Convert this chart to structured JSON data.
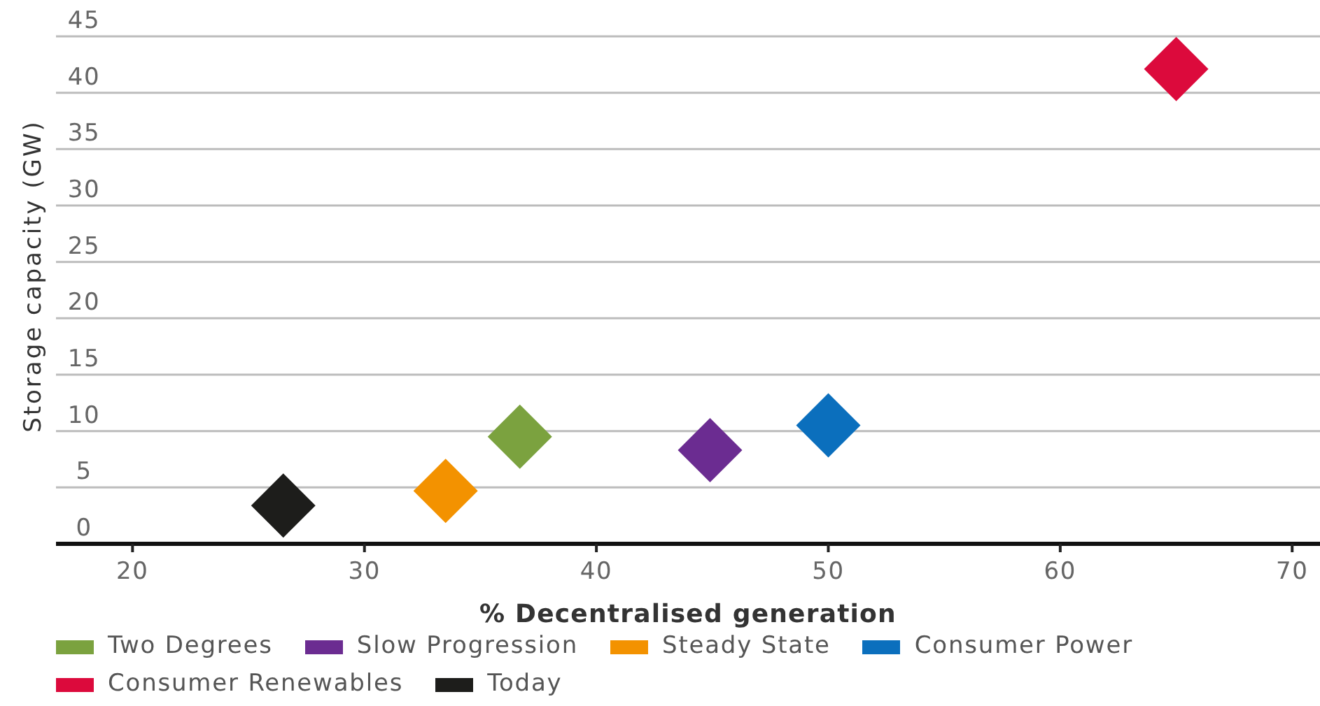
{
  "chart_data": {
    "type": "scatter",
    "xlabel": "% Decentralised generation",
    "ylabel": "Storage capacity (GW)",
    "xlim": [
      16.7,
      71.2
    ],
    "xticks": [
      20,
      30,
      40,
      50,
      60,
      70
    ],
    "ylim": [
      0,
      45
    ],
    "yticks": [
      0,
      5,
      10,
      15,
      20,
      25,
      30,
      35,
      40,
      45
    ],
    "grid": "y",
    "legend": "bottom",
    "marker": "diamond",
    "series": [
      {
        "name": "Two Degrees",
        "color": "#7ba23f",
        "x": [
          36.7
        ],
        "values": [
          9.5
        ]
      },
      {
        "name": "Slow Progression",
        "color": "#6b2c91",
        "x": [
          44.9
        ],
        "values": [
          8.3
        ]
      },
      {
        "name": "Steady State",
        "color": "#f39200",
        "x": [
          33.5
        ],
        "values": [
          4.7
        ]
      },
      {
        "name": "Consumer Power",
        "color": "#0b6fbd",
        "x": [
          50.0
        ],
        "values": [
          10.5
        ]
      },
      {
        "name": "Consumer Renewables",
        "color": "#dc0a3c",
        "x": [
          65.0
        ],
        "values": [
          42.1
        ]
      },
      {
        "name": "Today",
        "color": "#1d1d1b",
        "x": [
          26.5
        ],
        "values": [
          3.4
        ]
      }
    ]
  }
}
